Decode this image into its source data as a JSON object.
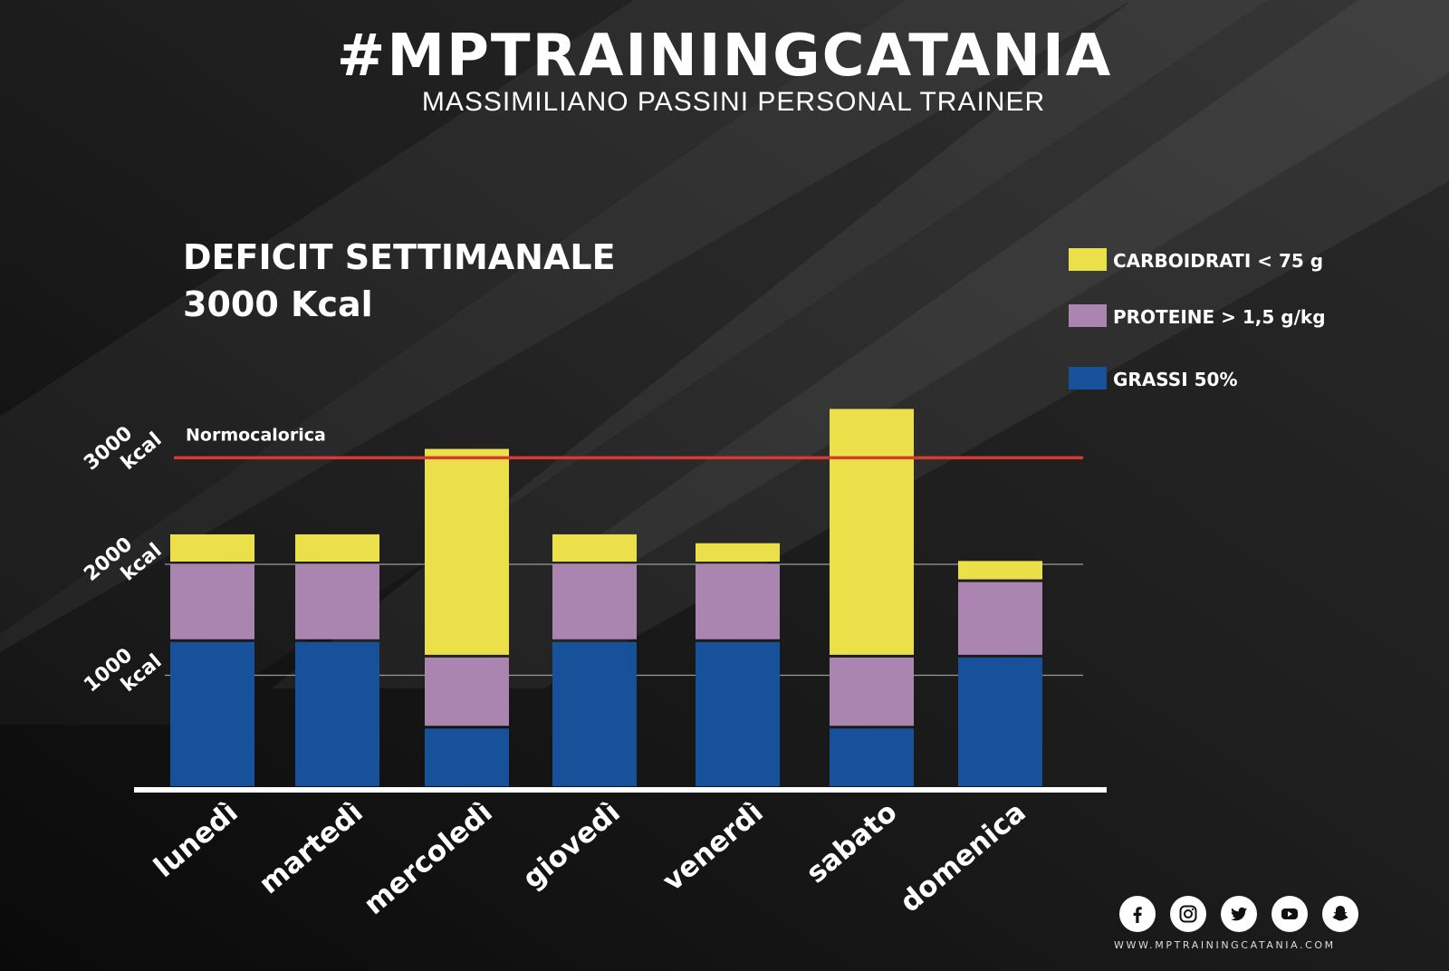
{
  "brand": {
    "title": "#MPTRAININGCATANIA",
    "subtitle": "MASSIMILIANO PASSINI PERSONAL TRAINER"
  },
  "heading": {
    "line1": "DEFICIT SETTIMANALE",
    "line2": "3000 Kcal"
  },
  "footer": {
    "website": "WWW.MPTRAININGCATANIA.COM",
    "icons": [
      "facebook-icon",
      "instagram-icon",
      "twitter-icon",
      "youtube-icon",
      "snapchat-icon"
    ]
  },
  "colors": {
    "grassi": "#17519a",
    "proteine": "#a985b0",
    "carboidrati": "#ebe04a",
    "normocalorica": "#d63a33",
    "axis": "#ffffff"
  },
  "chart_data": {
    "type": "bar",
    "stacked": true,
    "categories": [
      "lunedì",
      "martedì",
      "mercoledì",
      "giovedì",
      "venerdì",
      "sabato",
      "domenica"
    ],
    "series": [
      {
        "name": "GRASSI  50%",
        "color_key": "grassi",
        "values": [
          1300,
          1300,
          520,
          1300,
          1300,
          520,
          1160
        ]
      },
      {
        "name": "PROTEINE > 1,5 g/kg",
        "color_key": "proteine",
        "values": [
          700,
          700,
          640,
          700,
          700,
          640,
          680
        ]
      },
      {
        "name": "CARBOIDRATI < 75 g",
        "color_key": "carboidrati",
        "values": [
          270,
          270,
          1880,
          270,
          190,
          2240,
          190
        ]
      }
    ],
    "legend_order": [
      "CARBOIDRATI < 75 g",
      "PROTEINE > 1,5 g/kg",
      "GRASSI  50%"
    ],
    "legend_position": "top-right",
    "y_ticks": [
      {
        "value": 1000,
        "label_line1": "1000",
        "label_line2": "kcal"
      },
      {
        "value": 2000,
        "label_line1": "2000",
        "label_line2": "kcal"
      },
      {
        "value": 3000,
        "label_line1": "3000",
        "label_line2": "kcal"
      }
    ],
    "reference_line": {
      "value": 2960,
      "label": "Normocalorica"
    },
    "ylim": [
      0,
      3200
    ],
    "grid": "dashed at 1000 and 2000"
  }
}
